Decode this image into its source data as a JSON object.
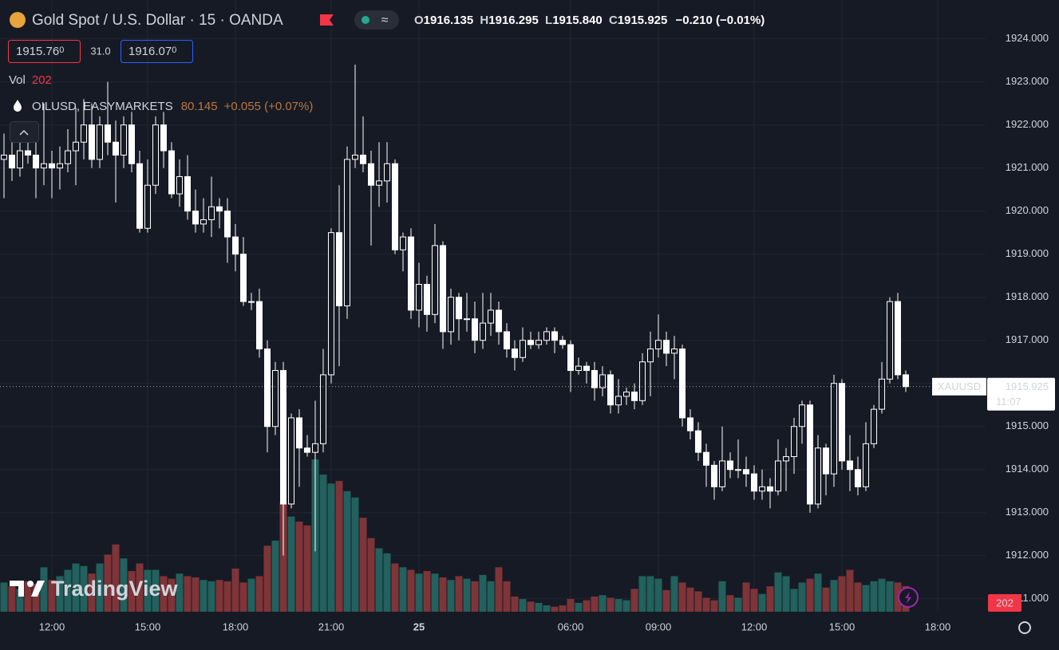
{
  "header": {
    "symbol": "Gold Spot / U.S. Dollar · 15 · OANDA",
    "ohlc": [
      {
        "label": "O",
        "value": "1916.135"
      },
      {
        "label": "H",
        "value": "1916.295"
      },
      {
        "label": "L",
        "value": "1915.840"
      },
      {
        "label": "C",
        "value": "1915.925"
      }
    ],
    "change": "−0.210 (−0.01%)"
  },
  "quote": {
    "bid": "1915.76",
    "bid_pip": "0",
    "spread": "31.0",
    "ask": "1916.07",
    "ask_pip": "0"
  },
  "volume_legend": {
    "label": "Vol"
  },
  "overlay_legend": {
    "name": "OILUSD, EASYMARKETS",
    "value": "80.145",
    "change": "+0.055 (+0.07%)"
  },
  "logo": "TradingView",
  "chart_data": {
    "type": "candlestick",
    "open": [
      1921.2,
      1921.3,
      1921.0,
      1921.4,
      1921.3,
      1921.0,
      1921.1,
      1921.0,
      1921.1,
      1921.4,
      1921.6,
      1922.0,
      1921.2,
      1922.0,
      1921.6,
      1921.3,
      1922.0,
      1921.1,
      1919.6,
      1920.6,
      1922.0,
      1921.4,
      1920.4,
      1920.8,
      1920.0,
      1919.7,
      1919.8,
      1920.1,
      1920.0,
      1919.4,
      1919.0,
      1917.9,
      1917.9,
      1916.8,
      1915.0,
      1916.3,
      1913.2,
      1915.2,
      1914.5,
      1914.4,
      1914.6,
      1916.2,
      1919.5,
      1917.8,
      1921.2,
      1921.3,
      1921.1,
      1920.6,
      1920.7,
      1921.1,
      1919.1,
      1919.4,
      1917.7,
      1918.3,
      1917.6,
      1919.2,
      1917.2,
      1918.0,
      1917.5,
      1917.5,
      1917.0,
      1917.4,
      1917.7,
      1917.2,
      1916.8,
      1916.6,
      1917.0,
      1916.9,
      1917.0,
      1917.2,
      1917.0,
      1916.9,
      1916.3,
      1916.4,
      1916.3,
      1915.9,
      1916.2,
      1915.5,
      1915.7,
      1915.8,
      1915.6,
      1916.5,
      1916.8,
      1917.0,
      1916.7,
      1916.8,
      1915.2,
      1914.9,
      1914.4,
      1914.1,
      1913.6,
      1914.2,
      1914.0,
      1914.0,
      1913.9,
      1913.5,
      1913.6,
      1913.5,
      1914.2,
      1914.3,
      1915.0,
      1915.5,
      1913.2,
      1914.5,
      1913.9,
      1916.0,
      1914.2,
      1914.0,
      1913.6,
      1914.6,
      1915.4,
      1916.1,
      1917.9,
      1916.2
    ],
    "high": [
      1921.8,
      1921.6,
      1921.7,
      1921.9,
      1921.6,
      1922.5,
      1921.4,
      1921.5,
      1921.9,
      1922.4,
      1922.6,
      1922.5,
      1922.2,
      1923.0,
      1922.1,
      1922.2,
      1922.3,
      1921.4,
      1921.2,
      1922.2,
      1922.3,
      1921.6,
      1921.2,
      1921.3,
      1920.5,
      1920.3,
      1920.8,
      1920.3,
      1920.3,
      1919.7,
      1919.4,
      1918.1,
      1918.2,
      1917.0,
      1916.5,
      1916.5,
      1915.3,
      1915.4,
      1914.8,
      1915.6,
      1916.8,
      1919.6,
      1920.6,
      1921.5,
      1923.4,
      1922.2,
      1921.4,
      1921.6,
      1921.6,
      1921.2,
      1919.5,
      1919.6,
      1918.8,
      1918.5,
      1919.7,
      1919.3,
      1918.2,
      1918.1,
      1918.1,
      1917.9,
      1918.1,
      1918.1,
      1917.9,
      1917.4,
      1917.0,
      1917.3,
      1917.2,
      1917.2,
      1917.3,
      1917.3,
      1917.1,
      1917.0,
      1916.6,
      1916.5,
      1916.5,
      1916.4,
      1916.3,
      1916.1,
      1915.9,
      1916.0,
      1916.7,
      1917.2,
      1917.6,
      1917.2,
      1917.1,
      1916.9,
      1915.4,
      1915.1,
      1914.6,
      1914.2,
      1915.0,
      1914.4,
      1914.7,
      1914.3,
      1914.1,
      1914.0,
      1913.8,
      1914.7,
      1914.5,
      1915.2,
      1915.6,
      1915.6,
      1914.8,
      1914.6,
      1916.2,
      1916.1,
      1914.8,
      1914.3,
      1915.1,
      1915.5,
      1916.5,
      1918.0,
      1918.1,
      1916.3
    ],
    "low": [
      1920.3,
      1920.7,
      1920.8,
      1921.1,
      1920.3,
      1920.6,
      1920.3,
      1920.5,
      1920.9,
      1920.6,
      1921.2,
      1921.0,
      1921.0,
      1921.3,
      1920.2,
      1921.0,
      1920.9,
      1919.5,
      1919.5,
      1920.4,
      1921.0,
      1920.3,
      1920.1,
      1919.8,
      1919.5,
      1919.5,
      1919.4,
      1919.6,
      1918.8,
      1918.6,
      1917.8,
      1917.7,
      1916.6,
      1914.4,
      1914.8,
      1912.0,
      1913.1,
      1913.6,
      1914.3,
      1912.1,
      1914.4,
      1916.0,
      1916.4,
      1917.5,
      1921.0,
      1920.9,
      1919.2,
      1920.1,
      1920.2,
      1919.0,
      1918.6,
      1917.5,
      1917.3,
      1917.2,
      1917.4,
      1916.8,
      1916.9,
      1917.0,
      1917.2,
      1916.7,
      1916.8,
      1917.1,
      1916.9,
      1916.6,
      1916.3,
      1916.5,
      1916.8,
      1916.8,
      1916.9,
      1916.7,
      1916.8,
      1915.8,
      1916.2,
      1916.0,
      1915.6,
      1915.7,
      1915.3,
      1915.3,
      1915.5,
      1915.4,
      1915.5,
      1915.7,
      1916.6,
      1916.4,
      1916.1,
      1915.0,
      1914.7,
      1914.2,
      1913.6,
      1913.3,
      1913.5,
      1913.8,
      1913.8,
      1913.6,
      1913.3,
      1913.3,
      1913.1,
      1913.4,
      1913.5,
      1913.9,
      1914.6,
      1913.0,
      1913.1,
      1913.4,
      1913.6,
      1914.0,
      1913.5,
      1913.4,
      1913.5,
      1914.5,
      1915.3,
      1916.0,
      1916.1,
      1915.8
    ],
    "close": [
      1921.3,
      1921.0,
      1921.4,
      1921.3,
      1921.0,
      1921.1,
      1921.0,
      1921.1,
      1921.4,
      1921.6,
      1922.0,
      1921.2,
      1922.0,
      1921.6,
      1921.3,
      1922.0,
      1921.1,
      1919.6,
      1920.6,
      1922.0,
      1921.4,
      1920.4,
      1920.8,
      1920.0,
      1919.7,
      1919.8,
      1920.1,
      1920.0,
      1919.4,
      1919.0,
      1917.9,
      1917.9,
      1916.8,
      1915.0,
      1916.3,
      1913.2,
      1915.2,
      1914.5,
      1914.4,
      1914.6,
      1916.2,
      1919.5,
      1917.8,
      1921.2,
      1921.3,
      1921.1,
      1920.6,
      1920.7,
      1921.1,
      1919.1,
      1919.4,
      1917.7,
      1918.3,
      1917.6,
      1919.2,
      1917.2,
      1918.0,
      1917.5,
      1917.5,
      1917.0,
      1917.4,
      1917.7,
      1917.2,
      1916.8,
      1916.6,
      1917.0,
      1916.9,
      1917.0,
      1917.2,
      1917.0,
      1916.9,
      1916.3,
      1916.4,
      1916.3,
      1915.9,
      1916.2,
      1915.5,
      1915.7,
      1915.8,
      1915.6,
      1916.5,
      1916.8,
      1917.0,
      1916.7,
      1916.8,
      1915.2,
      1914.9,
      1914.4,
      1914.1,
      1913.6,
      1914.2,
      1914.0,
      1914.0,
      1913.9,
      1913.5,
      1913.6,
      1913.5,
      1914.2,
      1914.3,
      1915.0,
      1915.5,
      1913.2,
      1914.5,
      1913.9,
      1916.0,
      1914.2,
      1914.0,
      1913.6,
      1914.6,
      1915.4,
      1916.1,
      1917.9,
      1916.2,
      1915.925
    ],
    "up_color": "#ffffff",
    "down_color": "#ffffff",
    "ylim": [
      1910.7,
      1924.9
    ],
    "yticks": [
      {
        "value": 1924,
        "label": "1924.000"
      },
      {
        "value": 1923,
        "label": "1923.000"
      },
      {
        "value": 1922,
        "label": "1922.000"
      },
      {
        "value": 1921,
        "label": "1921.000"
      },
      {
        "value": 1920,
        "label": "1920.000"
      },
      {
        "value": 1919,
        "label": "1919.000"
      },
      {
        "value": 1918,
        "label": "1918.000"
      },
      {
        "value": 1917,
        "label": "1917.000"
      },
      {
        "value": 1916,
        "label": "1916.000"
      },
      {
        "value": 1915,
        "label": "1915.000"
      },
      {
        "value": 1914,
        "label": "1914.000"
      },
      {
        "value": 1913,
        "label": "1913.000"
      },
      {
        "value": 1912,
        "label": "1912.000"
      },
      {
        "value": 1911,
        "label": "1911.000"
      }
    ],
    "xlim": [
      -0.5,
      123
    ],
    "xticks": [
      {
        "value": 6,
        "label": "12:00"
      },
      {
        "value": 18,
        "label": "15:00"
      },
      {
        "value": 29,
        "label": "18:00"
      },
      {
        "value": 41,
        "label": "21:00"
      },
      {
        "value": 52,
        "label": "25"
      },
      {
        "value": 71,
        "label": "06:00"
      },
      {
        "value": 82,
        "label": "09:00"
      },
      {
        "value": 94,
        "label": "12:00"
      },
      {
        "value": 105,
        "label": "15:00"
      },
      {
        "value": 117,
        "label": "18:00"
      }
    ],
    "grid": true,
    "volume": {
      "values": [
        230,
        200,
        180,
        240,
        220,
        350,
        250,
        280,
        330,
        380,
        360,
        300,
        380,
        450,
        530,
        420,
        320,
        380,
        330,
        330,
        280,
        260,
        300,
        280,
        270,
        250,
        240,
        250,
        240,
        340,
        230,
        260,
        280,
        520,
        560,
        860,
        750,
        710,
        680,
        1200,
        1080,
        1010,
        1030,
        950,
        900,
        740,
        580,
        500,
        460,
        380,
        350,
        330,
        300,
        320,
        300,
        270,
        250,
        280,
        260,
        240,
        290,
        240,
        350,
        240,
        120,
        100,
        80,
        70,
        50,
        40,
        50,
        100,
        70,
        90,
        120,
        130,
        110,
        100,
        90,
        180,
        280,
        280,
        260,
        170,
        280,
        230,
        190,
        160,
        110,
        90,
        240,
        130,
        110,
        230,
        180,
        140,
        200,
        310,
        280,
        180,
        230,
        260,
        300,
        190,
        250,
        280,
        330,
        230,
        210,
        240,
        260,
        240,
        230,
        202
      ],
      "ylim": [
        0,
        1200
      ],
      "up_color": "#22615d",
      "down_color": "#7f3438"
    },
    "last_price": {
      "symbol": "XAUUSD",
      "value": 1915.925,
      "countdown": "11:07"
    }
  }
}
